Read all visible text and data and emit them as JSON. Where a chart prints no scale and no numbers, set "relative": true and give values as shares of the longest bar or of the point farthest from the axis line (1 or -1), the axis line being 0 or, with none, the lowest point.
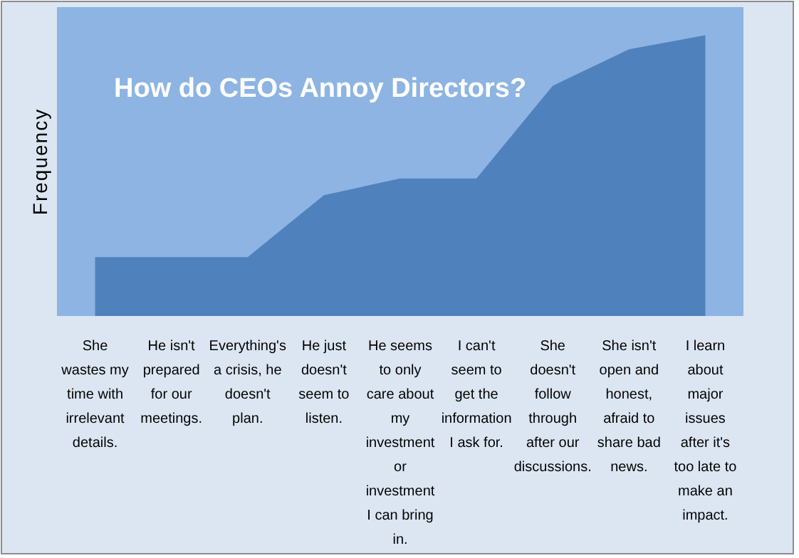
{
  "chart_data": {
    "type": "area",
    "title": "How do CEOs Annoy Directors?",
    "ylabel": "Frequency",
    "relative": true,
    "color": "#4f81bd",
    "categories": [
      "She wastes my time with irrelevant details.",
      "He isn't prepared for our meetings.",
      "Everything's a crisis, he doesn't plan.",
      "He just doesn't seem to listen.",
      "He seems to only care about my investment or investment I can bring in.",
      "I can't seem to get the information I ask for.",
      "She doesn't follow through after our discussions.",
      "She isn't open and honest, afraid to share bad news.",
      "I learn about major issues after it's too late to make an impact."
    ],
    "values": [
      0.21,
      0.21,
      0.21,
      0.43,
      0.49,
      0.49,
      0.82,
      0.95,
      1.0
    ]
  }
}
